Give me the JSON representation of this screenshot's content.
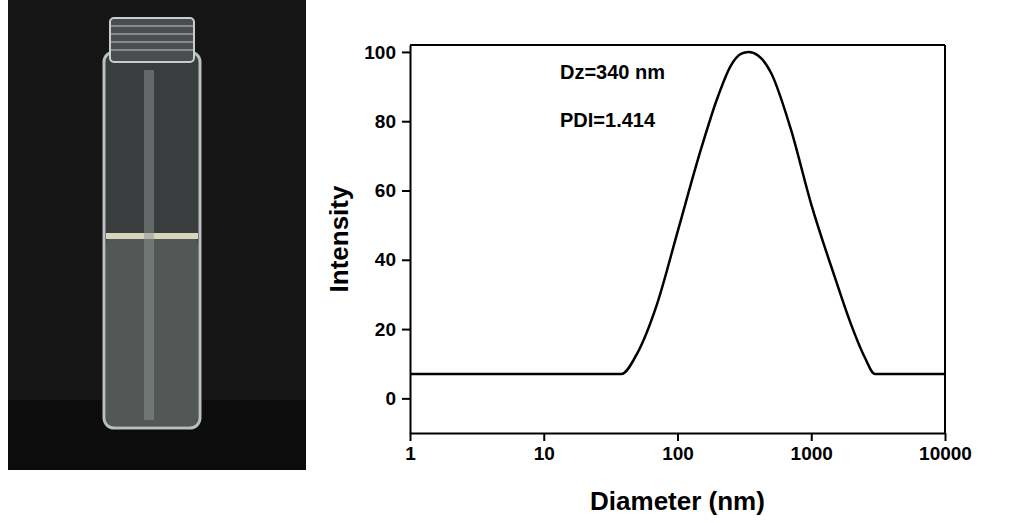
{
  "chart_data": {
    "type": "line",
    "x_label": "Diameter (nm)",
    "y_label": "Intensity",
    "annotations": [
      "Dz=340 nm",
      "PDI=1.414"
    ],
    "x": [
      1,
      38,
      50,
      70,
      100,
      150,
      200,
      250,
      300,
      340,
      400,
      500,
      700,
      1000,
      1500,
      2000,
      2500,
      3000,
      10000
    ],
    "series": [
      {
        "color": "#000000",
        "values": [
          7,
          7,
          13,
          27,
          48,
          72,
          87,
          96,
          99.5,
          100,
          99,
          94,
          78,
          56,
          35,
          21,
          12,
          7,
          7
        ]
      }
    ],
    "log": "x",
    "xlim": [
      1,
      10000
    ],
    "xticks": [
      1,
      10,
      100,
      1000,
      10000
    ],
    "ylim": [
      -10,
      102
    ],
    "yticks": [
      0,
      20,
      40,
      60,
      80,
      100
    ],
    "grid": false
  }
}
